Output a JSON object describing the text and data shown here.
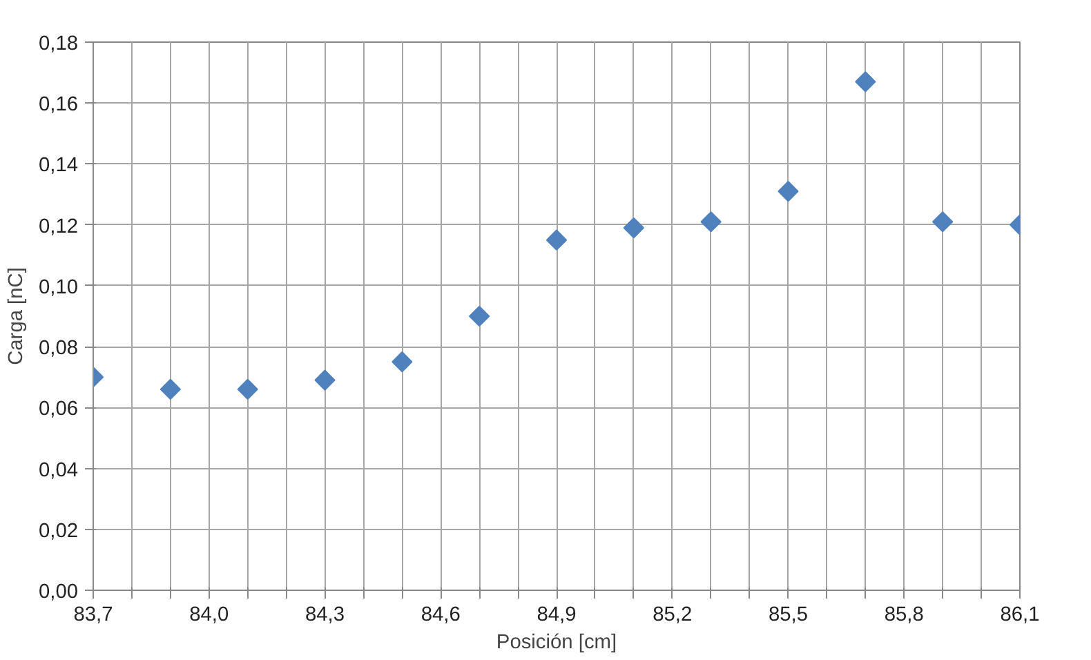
{
  "chart_data": {
    "type": "scatter",
    "xlabel": "Posición [cm]",
    "ylabel": "Carga [nC]",
    "x": [
      83.7,
      83.9,
      84.1,
      84.3,
      84.5,
      84.7,
      84.9,
      85.1,
      85.3,
      85.5,
      85.7,
      85.9,
      86.1
    ],
    "series": [
      {
        "color": "#4f81bd",
        "values": [
          0.07,
          0.066,
          0.066,
          0.069,
          0.075,
          0.09,
          0.115,
          0.119,
          0.121,
          0.131,
          0.167,
          0.121,
          0.12
        ]
      }
    ],
    "marker": "diamond",
    "grid": true,
    "xlim": [
      83.7,
      86.1
    ],
    "ylim": [
      0,
      0.18
    ],
    "xticks": [
      {
        "value": 83.7,
        "label": "83,7"
      },
      {
        "value": 83.8,
        "label": null
      },
      {
        "value": 83.9,
        "label": null
      },
      {
        "value": 84.0,
        "label": "84,0"
      },
      {
        "value": 84.1,
        "label": null
      },
      {
        "value": 84.2,
        "label": null
      },
      {
        "value": 84.3,
        "label": "84,3"
      },
      {
        "value": 84.4,
        "label": null
      },
      {
        "value": 84.5,
        "label": null
      },
      {
        "value": 84.6,
        "label": "84,6"
      },
      {
        "value": 84.7,
        "label": null
      },
      {
        "value": 84.8,
        "label": null
      },
      {
        "value": 84.9,
        "label": "84,9"
      },
      {
        "value": 85.0,
        "label": null
      },
      {
        "value": 85.1,
        "label": null
      },
      {
        "value": 85.2,
        "label": "85,2"
      },
      {
        "value": 85.3,
        "label": null
      },
      {
        "value": 85.4,
        "label": null
      },
      {
        "value": 85.5,
        "label": "85,5"
      },
      {
        "value": 85.6,
        "label": null
      },
      {
        "value": 85.7,
        "label": null
      },
      {
        "value": 85.8,
        "label": "85,8"
      },
      {
        "value": 85.9,
        "label": null
      },
      {
        "value": 86.0,
        "label": null
      },
      {
        "value": 86.1,
        "label": "86,1"
      }
    ],
    "yticks": [
      {
        "value": 0,
        "label": "0,00"
      },
      {
        "value": 0.02,
        "label": "0,02"
      },
      {
        "value": 0.04,
        "label": "0,04"
      },
      {
        "value": 0.06,
        "label": "0,06"
      },
      {
        "value": 0.08,
        "label": "0,08"
      },
      {
        "value": 0.1,
        "label": "0,10"
      },
      {
        "value": 0.12,
        "label": "0,12"
      },
      {
        "value": 0.14,
        "label": "0,14"
      },
      {
        "value": 0.16,
        "label": "0,16"
      },
      {
        "value": 0.18,
        "label": "0,18"
      }
    ]
  }
}
